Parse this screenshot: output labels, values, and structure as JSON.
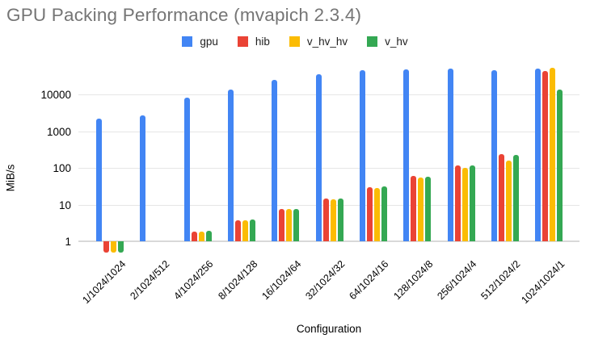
{
  "chart_data": {
    "type": "bar",
    "title": "GPU Packing Performance (mvapich 2.3.4)",
    "xlabel": "Configuration",
    "ylabel": "MiB/s",
    "y_scale": "log",
    "grid": true,
    "legend_position": "top",
    "yticks": [
      1,
      10,
      100,
      1000,
      10000
    ],
    "ytick_labels": [
      "1",
      "10",
      "100",
      "1000",
      "10000"
    ],
    "ylim": [
      0.48,
      59000
    ],
    "categories": [
      "1/1024/1024",
      "2/1024/512",
      "4/1024/256",
      "8/1024/128",
      "16/1024/64",
      "32/1024/32",
      "64/1024/16",
      "128/1024/8",
      "256/1024/4",
      "512/1024/2",
      "1024/1024/1"
    ],
    "series": [
      {
        "name": "gpu",
        "color": "#4285F4",
        "values": [
          2200,
          2750,
          8500,
          13500,
          26000,
          36000,
          46000,
          49000,
          53000,
          46500,
          51000
        ]
      },
      {
        "name": "hib",
        "color": "#EA4335",
        "values": [
          0.5,
          null,
          1.85,
          3.8,
          7.5,
          15,
          30,
          60,
          120,
          240,
          45000
        ]
      },
      {
        "name": "v_hv_hv",
        "color": "#FBBC04",
        "values": [
          0.5,
          null,
          1.85,
          3.8,
          7.5,
          14,
          29,
          55,
          100,
          160,
          54000
        ]
      },
      {
        "name": "v_hv",
        "color": "#34A853",
        "values": [
          0.5,
          null,
          1.9,
          3.9,
          7.6,
          15,
          31,
          58,
          120,
          225,
          13500
        ]
      }
    ],
    "grid_color": "#e6e6e6",
    "title_color": "#757575"
  }
}
